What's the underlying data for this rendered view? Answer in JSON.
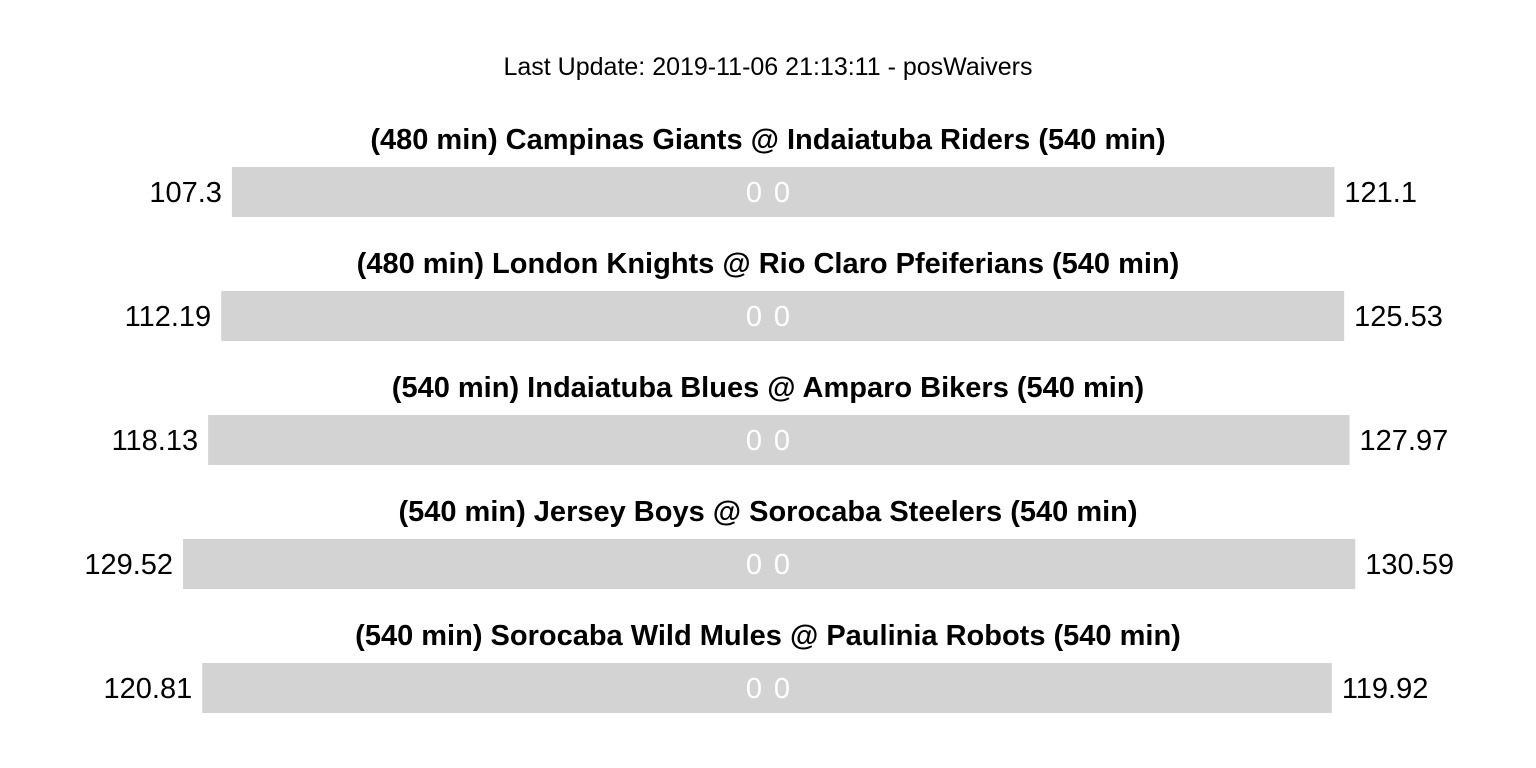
{
  "update_label": "Last Update: 2019-11-06 21:13:11 - posWaivers",
  "colors": {
    "bar": "#d3d3d3",
    "bar_label": "#ffffff",
    "text": "#000000",
    "background": "#ffffff"
  },
  "chart_data": {
    "type": "bar",
    "orientation": "horizontal",
    "title": "Last Update: 2019-11-06 21:13:11 - posWaivers",
    "matchups": [
      {
        "label": "(480 min) Campinas Giants @ Indaiatuba Riders (540 min)",
        "away_score": "107.3",
        "home_score": "121.1",
        "away_projected": 107.3,
        "home_projected": 121.1,
        "away_bar_value": "0",
        "home_bar_value": "0"
      },
      {
        "label": "(480 min) London Knights @ Rio Claro Pfeiferians (540 min)",
        "away_score": "112.19",
        "home_score": "125.53",
        "away_projected": 112.19,
        "home_projected": 125.53,
        "away_bar_value": "0",
        "home_bar_value": "0"
      },
      {
        "label": "(540 min) Indaiatuba Blues @ Amparo Bikers (540 min)",
        "away_score": "118.13",
        "home_score": "127.97",
        "away_projected": 118.13,
        "home_projected": 127.97,
        "away_bar_value": "0",
        "home_bar_value": "0"
      },
      {
        "label": "(540 min) Jersey Boys @ Sorocaba Steelers (540 min)",
        "away_score": "129.52",
        "home_score": "130.59",
        "away_projected": 129.52,
        "home_projected": 130.59,
        "away_bar_value": "0",
        "home_bar_value": "0"
      },
      {
        "label": "(540 min) Sorocaba Wild Mules @ Paulinia Robots (540 min)",
        "away_score": "120.81",
        "home_score": "119.92",
        "away_projected": 120.81,
        "home_projected": 119.92,
        "away_bar_value": "0",
        "home_bar_value": "0"
      }
    ]
  }
}
